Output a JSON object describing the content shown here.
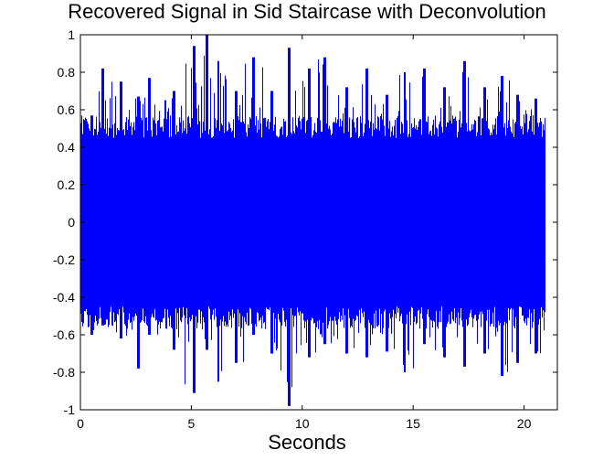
{
  "chart_data": {
    "type": "line",
    "title": "Recovered Signal in Sid Staircase with Deconvolution",
    "xlabel": "Seconds",
    "ylabel": "",
    "xlim": [
      0,
      21.5
    ],
    "ylim": [
      -1,
      1
    ],
    "xticks": [
      0,
      5,
      10,
      15,
      20
    ],
    "xtick_labels": [
      "0",
      "5",
      "10",
      "15",
      "20"
    ],
    "yticks": [
      1,
      0.8,
      0.6,
      0.4,
      0.2,
      0,
      -0.2,
      -0.4,
      -0.6,
      -0.8,
      -1
    ],
    "ytick_labels": [
      "1",
      "0.8",
      "0.6",
      "0.4",
      "0.2",
      "0",
      "-0.2",
      "-0.4",
      "-0.6",
      "-0.8",
      "-1"
    ],
    "grid": false,
    "series": [
      {
        "color": "#0000ff",
        "x_range": [
          0,
          20.9
        ],
        "dense_band": [
          -0.45,
          0.45
        ],
        "peaks_approx": [
          {
            "x": 0.5,
            "max": 0.57,
            "min": -0.6
          },
          {
            "x": 1.0,
            "max": 0.82,
            "min": -0.55
          },
          {
            "x": 1.8,
            "max": 0.75,
            "min": -0.62
          },
          {
            "x": 2.6,
            "max": 0.67,
            "min": -0.78
          },
          {
            "x": 3.1,
            "max": 0.77,
            "min": -0.6
          },
          {
            "x": 4.2,
            "max": 0.7,
            "min": -0.68
          },
          {
            "x": 5.1,
            "max": 0.94,
            "min": -0.91
          },
          {
            "x": 5.7,
            "max": 1.0,
            "min": -0.68
          },
          {
            "x": 6.2,
            "max": 0.86,
            "min": -0.85
          },
          {
            "x": 7.0,
            "max": 0.7,
            "min": -0.75
          },
          {
            "x": 7.8,
            "max": 0.88,
            "min": -0.6
          },
          {
            "x": 8.6,
            "max": 0.7,
            "min": -0.7
          },
          {
            "x": 9.4,
            "max": 0.93,
            "min": -0.98
          },
          {
            "x": 10.3,
            "max": 0.82,
            "min": -0.72
          },
          {
            "x": 11.0,
            "max": 0.88,
            "min": -0.65
          },
          {
            "x": 12.0,
            "max": 0.72,
            "min": -0.7
          },
          {
            "x": 12.9,
            "max": 0.82,
            "min": -0.72
          },
          {
            "x": 13.8,
            "max": 0.68,
            "min": -0.69
          },
          {
            "x": 14.6,
            "max": 0.8,
            "min": -0.8
          },
          {
            "x": 15.5,
            "max": 0.82,
            "min": -0.65
          },
          {
            "x": 16.4,
            "max": 0.72,
            "min": -0.72
          },
          {
            "x": 17.3,
            "max": 0.86,
            "min": -0.77
          },
          {
            "x": 18.2,
            "max": 0.72,
            "min": -0.7
          },
          {
            "x": 19.0,
            "max": 0.78,
            "min": -0.82
          },
          {
            "x": 19.7,
            "max": 0.68,
            "min": -0.75
          },
          {
            "x": 20.5,
            "max": 0.66,
            "min": -0.7
          }
        ]
      }
    ]
  }
}
